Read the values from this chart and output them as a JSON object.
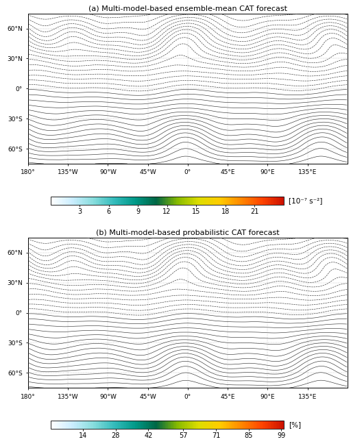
{
  "title_a": "(a) Multi-model-based ensemble-mean CAT forecast",
  "title_b": "(b) Multi-model-based probabilistic CAT forecast",
  "colorbar_a_ticks": [
    3,
    6,
    9,
    12,
    15,
    18,
    21
  ],
  "colorbar_a_label": "[10⁻⁷ s⁻²]",
  "colorbar_b_ticks": [
    14,
    28,
    42,
    57,
    71,
    85,
    99
  ],
  "colorbar_b_label": "[%]",
  "cmap_colors": [
    "#ffffff",
    "#cceeff",
    "#88dddd",
    "#33bbbb",
    "#009988",
    "#006644",
    "#88bb00",
    "#dddd00",
    "#ffcc00",
    "#ff8800",
    "#ff4400",
    "#cc1100"
  ],
  "lon_ticks": [
    -180,
    -135,
    -90,
    -45,
    0,
    45,
    90,
    135
  ],
  "lon_labels": [
    "180°",
    "135°W",
    "90°W",
    "45°W",
    "0°",
    "45°E",
    "90°E",
    "135°E"
  ],
  "lat_ticks": [
    60,
    30,
    0,
    -30,
    -60
  ],
  "lat_labels": [
    "60°N",
    "30°N",
    "0°",
    "30°S",
    "60°S"
  ],
  "bg_color": "#ffffff",
  "contour_color": "#333333",
  "map_bg": "#ffffff",
  "figsize": [
    5.12,
    6.54
  ],
  "dpi": 100
}
